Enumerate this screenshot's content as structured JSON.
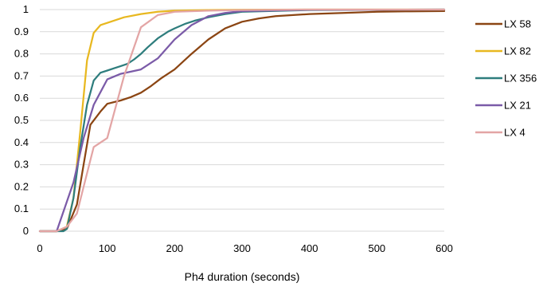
{
  "chart_data": {
    "type": "line",
    "title": "",
    "xlabel": "Ph4 duration (seconds)",
    "ylabel": "",
    "xlim": [
      0,
      600
    ],
    "ylim": [
      0,
      1
    ],
    "xticks": [
      0,
      100,
      200,
      300,
      400,
      500,
      600
    ],
    "yticks": [
      0,
      0.1,
      0.2,
      0.3,
      0.4,
      0.5,
      0.6,
      0.7,
      0.8,
      0.9,
      1
    ],
    "ytick_labels": [
      "0",
      "0.1",
      "0.2",
      "0.3",
      "0.4",
      "0.5",
      "0.6",
      "0.7",
      "0.8",
      "0.9",
      "1"
    ],
    "grid": "horizontal",
    "legend_position": "right",
    "series": [
      {
        "name": "LX 58",
        "color": "#8B4513",
        "x": [
          0,
          25,
          40,
          55,
          65,
          75,
          90,
          100,
          120,
          135,
          150,
          165,
          180,
          200,
          225,
          250,
          275,
          300,
          325,
          350,
          400,
          450,
          500,
          550,
          600
        ],
        "y": [
          0,
          0,
          0.01,
          0.12,
          0.3,
          0.48,
          0.54,
          0.575,
          0.59,
          0.605,
          0.625,
          0.655,
          0.69,
          0.73,
          0.8,
          0.865,
          0.915,
          0.945,
          0.96,
          0.97,
          0.98,
          0.985,
          0.99,
          0.992,
          0.993
        ]
      },
      {
        "name": "LX 82",
        "color": "#E8B820",
        "x": [
          0,
          25,
          40,
          50,
          60,
          70,
          80,
          90,
          100,
          125,
          150,
          175,
          200,
          250,
          300,
          400,
          600
        ],
        "y": [
          0,
          0,
          0.02,
          0.15,
          0.45,
          0.77,
          0.895,
          0.93,
          0.94,
          0.965,
          0.98,
          0.99,
          0.995,
          0.998,
          0.999,
          1,
          1
        ]
      },
      {
        "name": "LX 356",
        "color": "#2E7D7D",
        "x": [
          0,
          25,
          35,
          40,
          50,
          60,
          70,
          80,
          90,
          100,
          110,
          120,
          130,
          140,
          150,
          160,
          175,
          190,
          200,
          215,
          230,
          250,
          275,
          300,
          400,
          600
        ],
        "y": [
          0,
          0,
          0,
          0.01,
          0.15,
          0.38,
          0.57,
          0.68,
          0.715,
          0.725,
          0.735,
          0.745,
          0.755,
          0.775,
          0.8,
          0.83,
          0.87,
          0.9,
          0.915,
          0.935,
          0.95,
          0.965,
          0.98,
          0.99,
          0.998,
          1
        ]
      },
      {
        "name": "LX 21",
        "color": "#7B5BA8",
        "x": [
          0,
          25,
          50,
          65,
          80,
          100,
          120,
          150,
          175,
          200,
          225,
          250,
          275,
          300,
          400,
          600
        ],
        "y": [
          0,
          0,
          0.22,
          0.42,
          0.57,
          0.685,
          0.71,
          0.73,
          0.78,
          0.865,
          0.93,
          0.97,
          0.985,
          0.993,
          0.999,
          1
        ]
      },
      {
        "name": "LX 4",
        "color": "#E3A5A5",
        "x": [
          0,
          25,
          40,
          55,
          65,
          80,
          100,
          125,
          150,
          175,
          200,
          250,
          300,
          400,
          600
        ],
        "y": [
          0,
          0,
          0.02,
          0.08,
          0.2,
          0.38,
          0.42,
          0.7,
          0.92,
          0.975,
          0.99,
          0.995,
          0.998,
          1,
          1
        ]
      }
    ]
  }
}
